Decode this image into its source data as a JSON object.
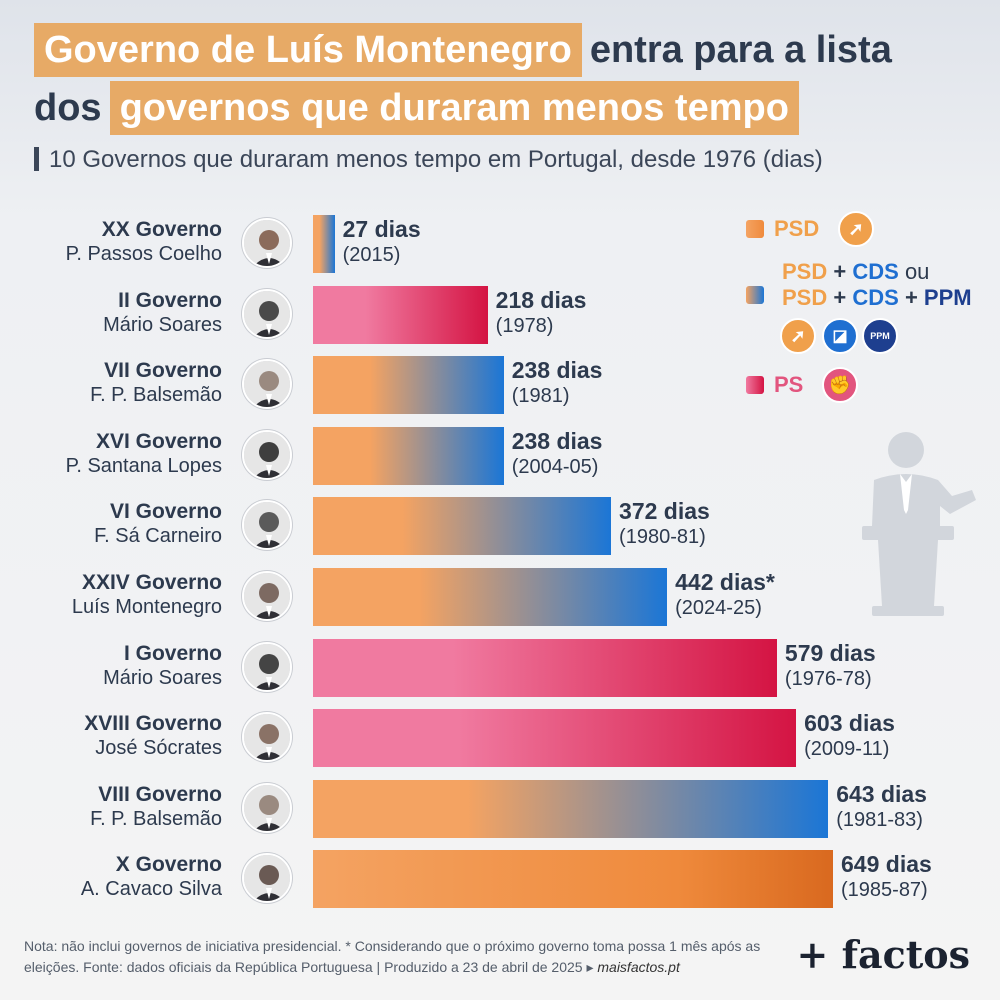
{
  "title": {
    "line1_highlight": "Governo de Luís Montenegro",
    "line1_plain": "entra para a lista",
    "line2_plain": "dos",
    "line2_highlight": "governos que duraram menos tempo"
  },
  "subtitle": "10 Governos que duraram menos tempo em Portugal, desde 1976 (dias)",
  "colors": {
    "psd": "#f0a04b",
    "coalition_orange": "#f4a362",
    "coalition_blue": "#1b76d6",
    "ps_light": "#f07aa0",
    "ps_dark": "#d41443",
    "text": "#2d3a4e"
  },
  "legend": {
    "psd_label": "PSD",
    "coalition_psd": "PSD",
    "coalition_plus": "+",
    "coalition_cds": "CDS",
    "coalition_ou": "ou",
    "coalition_ppm": "PPM",
    "ppm_icon_text": "PPM",
    "ps_label": "PS",
    "icons": [
      "psd-arrow-icon",
      "cds-icon",
      "ppm-icon",
      "ps-fist-icon"
    ]
  },
  "chart_data": {
    "type": "bar",
    "orientation": "horizontal",
    "unit": "dias",
    "categories": [
      "XX Governo",
      "II Governo",
      "VII Governo",
      "XVI Governo",
      "VI Governo",
      "XXIV Governo",
      "I Governo",
      "XVIII Governo",
      "VIII Governo",
      "X Governo"
    ],
    "rows": [
      {
        "government": "XX Governo",
        "pm": "P. Passos Coelho",
        "days": 27,
        "days_label": "27 dias",
        "years": "(2015)",
        "party": "coalition"
      },
      {
        "government": "II Governo",
        "pm": "Mário Soares",
        "days": 218,
        "days_label": "218 dias",
        "years": "(1978)",
        "party": "ps"
      },
      {
        "government": "VII Governo",
        "pm": "F. P. Balsemão",
        "days": 238,
        "days_label": "238 dias",
        "years": "(1981)",
        "party": "coalition"
      },
      {
        "government": "XVI Governo",
        "pm": "P. Santana Lopes",
        "days": 238,
        "days_label": "238 dias",
        "years": "(2004-05)",
        "party": "coalition"
      },
      {
        "government": "VI Governo",
        "pm": "F. Sá Carneiro",
        "days": 372,
        "days_label": "372 dias",
        "years": "(1980-81)",
        "party": "coalition"
      },
      {
        "government": "XXIV Governo",
        "pm": "Luís Montenegro",
        "days": 442,
        "days_label": "442 dias*",
        "years": "(2024-25)",
        "party": "coalition"
      },
      {
        "government": "I Governo",
        "pm": "Mário Soares",
        "days": 579,
        "days_label": "579 dias",
        "years": "(1976-78)",
        "party": "ps"
      },
      {
        "government": "XVIII Governo",
        "pm": "José Sócrates",
        "days": 603,
        "days_label": "603 dias",
        "years": "(2009-11)",
        "party": "ps"
      },
      {
        "government": "VIII Governo",
        "pm": "F. P. Balsemão",
        "days": 643,
        "days_label": "643 dias",
        "years": "(1981-83)",
        "party": "coalition"
      },
      {
        "government": "X Governo",
        "pm": "A. Cavaco Silva",
        "days": 649,
        "days_label": "649 dias",
        "years": "(1985-87)",
        "party": "psd"
      }
    ],
    "xlim": [
      0,
      649
    ],
    "grid": false
  },
  "note": {
    "text": "Nota: não inclui governos de iniciativa presidencial. * Considerando que o próximo governo toma possa 1 mês após as eleições. Fonte: dados oficiais da República Portuguesa | Produzido a 23 de abril de 2025 ▸",
    "link": "maisfactos.pt"
  },
  "brand": "+ factos"
}
